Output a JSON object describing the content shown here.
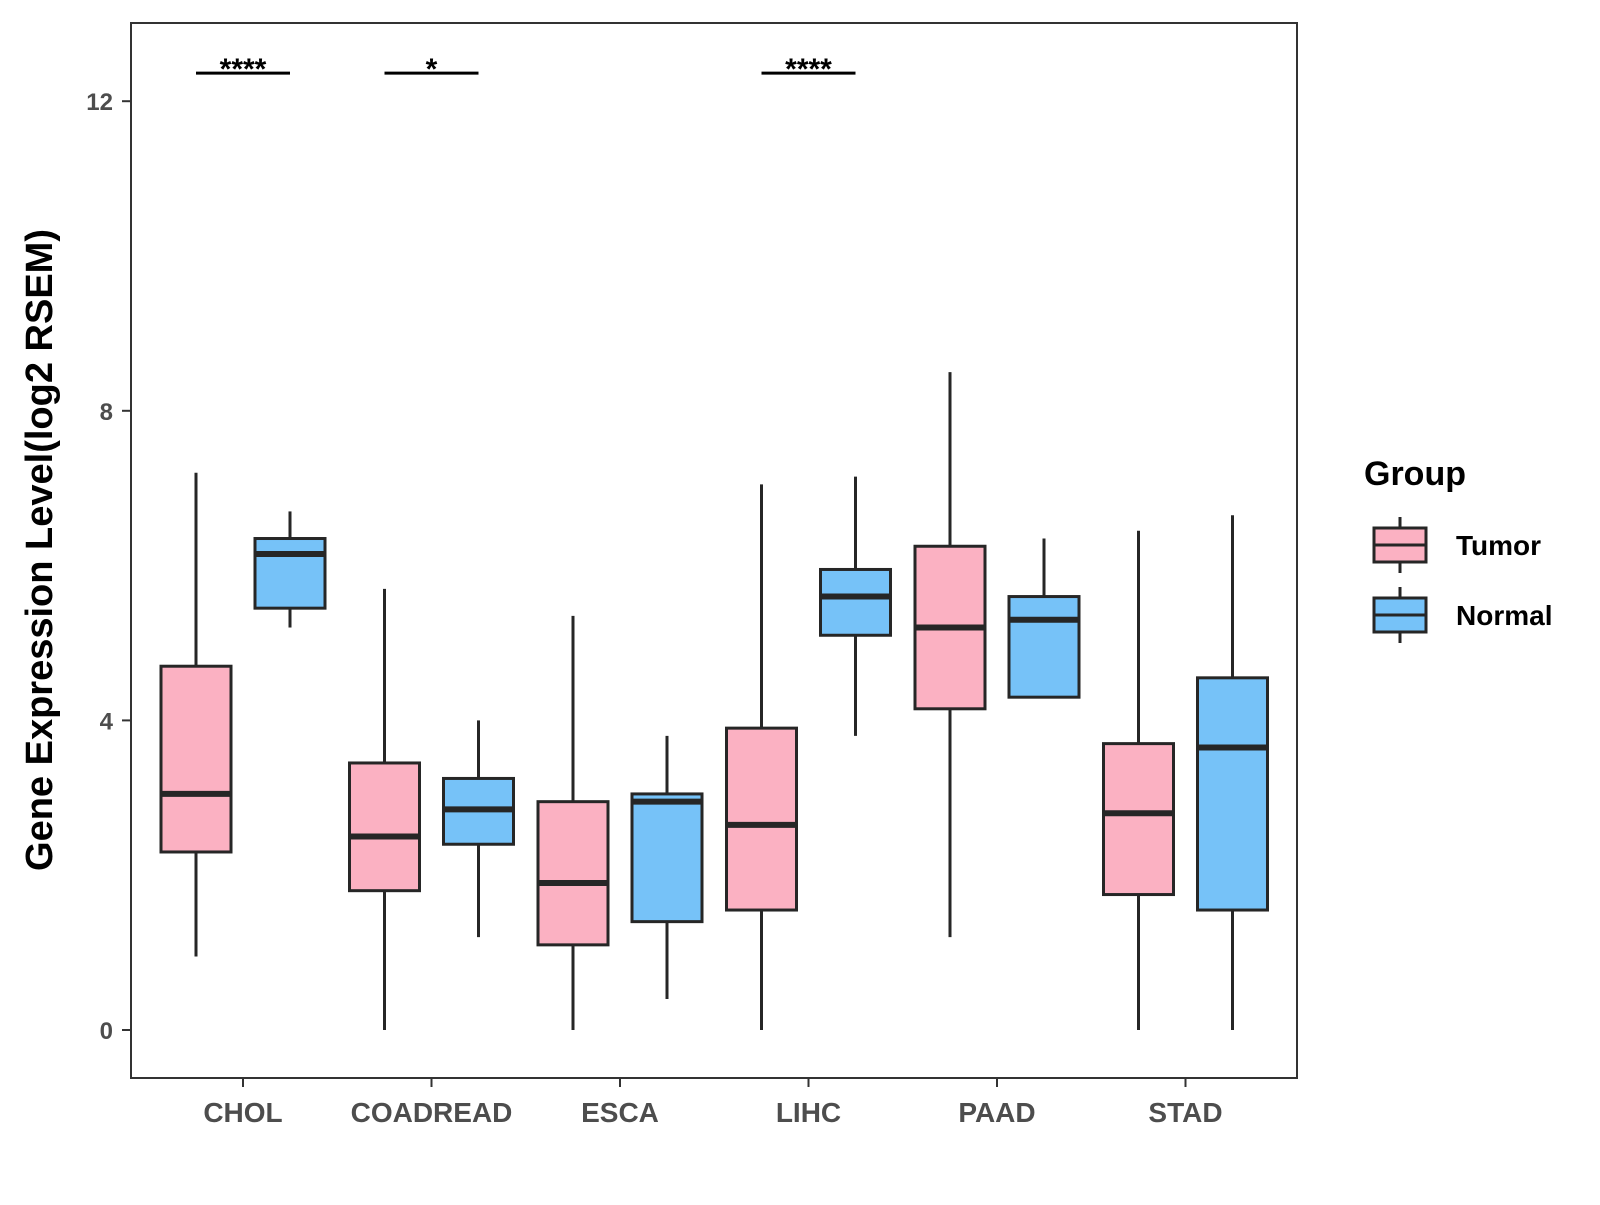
{
  "chart_data": {
    "type": "boxplot",
    "ylabel": "Gene Expression Level(log2 RSEM)",
    "xlabel": "",
    "ylim": [
      -0.6,
      13.0
    ],
    "yticks": [
      0,
      4,
      8,
      12
    ],
    "categories": [
      "CHOL",
      "COADREAD",
      "ESCA",
      "LIHC",
      "PAAD",
      "STAD"
    ],
    "legend": {
      "title": "Group",
      "entries": [
        {
          "name": "Tumor",
          "color": "#fbb1c2"
        },
        {
          "name": "Normal",
          "color": "#76c2f8"
        }
      ],
      "position": "right"
    },
    "series": [
      {
        "name": "Tumor",
        "color": "#fbb1c2",
        "boxes": [
          {
            "category": "CHOL",
            "min": 0.95,
            "q1": 2.3,
            "median": 3.05,
            "q3": 4.7,
            "max": 7.2
          },
          {
            "category": "COADREAD",
            "min": 0.0,
            "q1": 1.8,
            "median": 2.5,
            "q3": 3.45,
            "max": 5.7
          },
          {
            "category": "ESCA",
            "min": 0.0,
            "q1": 1.1,
            "median": 1.9,
            "q3": 2.95,
            "max": 5.35
          },
          {
            "category": "LIHC",
            "min": 0.0,
            "q1": 1.55,
            "median": 2.65,
            "q3": 3.9,
            "max": 7.05
          },
          {
            "category": "PAAD",
            "min": 1.2,
            "q1": 4.15,
            "median": 5.2,
            "q3": 6.25,
            "max": 8.5
          },
          {
            "category": "STAD",
            "min": 0.0,
            "q1": 1.75,
            "median": 2.8,
            "q3": 3.7,
            "max": 6.45
          }
        ]
      },
      {
        "name": "Normal",
        "color": "#76c2f8",
        "boxes": [
          {
            "category": "CHOL",
            "min": 5.2,
            "q1": 5.45,
            "median": 6.15,
            "q3": 6.35,
            "max": 6.7
          },
          {
            "category": "COADREAD",
            "min": 1.2,
            "q1": 2.4,
            "median": 2.85,
            "q3": 3.25,
            "max": 4.0
          },
          {
            "category": "ESCA",
            "min": 0.4,
            "q1": 1.4,
            "median": 2.95,
            "q3": 3.05,
            "max": 3.8
          },
          {
            "category": "LIHC",
            "min": 3.8,
            "q1": 5.1,
            "median": 5.6,
            "q3": 5.95,
            "max": 7.15
          },
          {
            "category": "PAAD",
            "min": 4.3,
            "q1": 4.3,
            "median": 5.3,
            "q3": 5.6,
            "max": 6.35
          },
          {
            "category": "STAD",
            "min": 0.0,
            "q1": 1.55,
            "median": 3.65,
            "q3": 4.55,
            "max": 6.65
          }
        ]
      }
    ],
    "significance": [
      {
        "category": "CHOL",
        "label": "****"
      },
      {
        "category": "COADREAD",
        "label": "*"
      },
      {
        "category": "LIHC",
        "label": "****"
      }
    ],
    "significance_y": 12.35
  }
}
